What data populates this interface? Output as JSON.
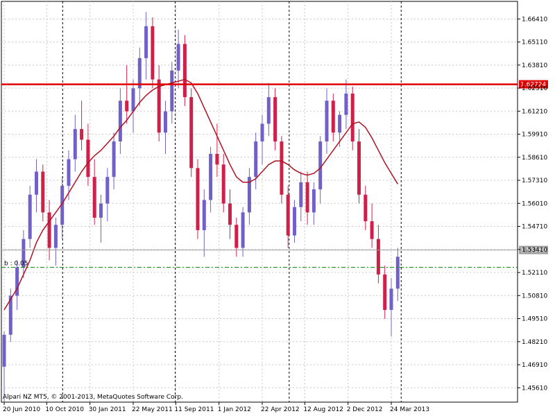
{
  "chart_data": {
    "type": "candlestick",
    "broker_text": "Alpari NZ MT5, © 2001-2013, MetaQuotes Software Corp.",
    "y_ticks": [
      "1.66410",
      "1.65110",
      "1.63810",
      "1.62510",
      "1.61210",
      "1.59910",
      "1.58610",
      "1.57310",
      "1.56010",
      "1.54710",
      "1.53410",
      "1.52110",
      "1.50810",
      "1.49510",
      "1.48210",
      "1.46910",
      "1.45610"
    ],
    "x_ticks": [
      "20 Jun 2010",
      "10 Oct 2010",
      "30 Jan 2011",
      "22 May 2011",
      "11 Sep 2011",
      "1 Jan 2012",
      "22 Apr 2012",
      "12 Aug 2012",
      "2 Dec 2012",
      "24 Mar 2013"
    ],
    "ylim": [
      1.448,
      1.674
    ],
    "resistance_level": {
      "value": 1.62724,
      "label": "1.62724",
      "color": "#e00000"
    },
    "current_price": {
      "value": 1.5338,
      "label": "1.53380",
      "color": "#a0a0a0"
    },
    "level_line": {
      "value": 1.524,
      "label": "b : 0.05",
      "color": "#008000"
    },
    "colors": {
      "bull": "#7060c8",
      "bear": "#d0204a",
      "ma": "#b01020",
      "grid": "#c8c8c8"
    },
    "candles": [
      [
        1.468,
        1.488,
        1.448,
        1.486
      ],
      [
        1.486,
        1.512,
        1.482,
        1.508
      ],
      [
        1.508,
        1.528,
        1.5,
        1.524
      ],
      [
        1.524,
        1.545,
        1.518,
        1.54
      ],
      [
        1.54,
        1.57,
        1.535,
        1.565
      ],
      [
        1.565,
        1.585,
        1.555,
        1.578
      ],
      [
        1.578,
        1.582,
        1.55,
        1.555
      ],
      [
        1.555,
        1.562,
        1.528,
        1.535
      ],
      [
        1.535,
        1.552,
        1.525,
        1.548
      ],
      [
        1.548,
        1.575,
        1.54,
        1.57
      ],
      [
        1.57,
        1.59,
        1.562,
        1.585
      ],
      [
        1.585,
        1.61,
        1.578,
        1.602
      ],
      [
        1.602,
        1.618,
        1.59,
        1.596
      ],
      [
        1.596,
        1.605,
        1.57,
        1.575
      ],
      [
        1.575,
        1.585,
        1.548,
        1.552
      ],
      [
        1.552,
        1.565,
        1.538,
        1.56
      ],
      [
        1.56,
        1.58,
        1.55,
        1.575
      ],
      [
        1.575,
        1.6,
        1.568,
        1.595
      ],
      [
        1.595,
        1.625,
        1.588,
        1.618
      ],
      [
        1.618,
        1.638,
        1.605,
        1.612
      ],
      [
        1.612,
        1.63,
        1.6,
        1.625
      ],
      [
        1.625,
        1.648,
        1.615,
        1.642
      ],
      [
        1.642,
        1.668,
        1.63,
        1.66
      ],
      [
        1.66,
        1.665,
        1.625,
        1.63
      ],
      [
        1.63,
        1.638,
        1.595,
        1.6
      ],
      [
        1.6,
        1.618,
        1.588,
        1.612
      ],
      [
        1.612,
        1.64,
        1.605,
        1.635
      ],
      [
        1.635,
        1.658,
        1.625,
        1.65
      ],
      [
        1.65,
        1.655,
        1.615,
        1.62
      ],
      [
        1.62,
        1.625,
        1.575,
        1.58
      ],
      [
        1.58,
        1.585,
        1.54,
        1.545
      ],
      [
        1.545,
        1.568,
        1.53,
        1.562
      ],
      [
        1.562,
        1.592,
        1.555,
        1.588
      ],
      [
        1.588,
        1.605,
        1.575,
        1.582
      ],
      [
        1.582,
        1.588,
        1.555,
        1.56
      ],
      [
        1.56,
        1.568,
        1.54,
        1.548
      ],
      [
        1.548,
        1.552,
        1.53,
        1.535
      ],
      [
        1.535,
        1.558,
        1.53,
        1.555
      ],
      [
        1.555,
        1.58,
        1.548,
        1.575
      ],
      [
        1.575,
        1.6,
        1.568,
        1.595
      ],
      [
        1.595,
        1.61,
        1.582,
        1.605
      ],
      [
        1.605,
        1.628,
        1.598,
        1.62
      ],
      [
        1.62,
        1.625,
        1.59,
        1.595
      ],
      [
        1.595,
        1.598,
        1.56,
        1.565
      ],
      [
        1.565,
        1.57,
        1.535,
        1.542
      ],
      [
        1.542,
        1.562,
        1.538,
        1.558
      ],
      [
        1.558,
        1.578,
        1.55,
        1.572
      ],
      [
        1.572,
        1.578,
        1.548,
        1.555
      ],
      [
        1.555,
        1.572,
        1.548,
        1.568
      ],
      [
        1.568,
        1.598,
        1.56,
        1.595
      ],
      [
        1.595,
        1.625,
        1.588,
        1.618
      ],
      [
        1.618,
        1.622,
        1.595,
        1.6
      ],
      [
        1.6,
        1.612,
        1.592,
        1.61
      ],
      [
        1.61,
        1.63,
        1.602,
        1.622
      ],
      [
        1.622,
        1.626,
        1.59,
        1.595
      ],
      [
        1.595,
        1.602,
        1.56,
        1.565
      ],
      [
        1.565,
        1.57,
        1.545,
        1.55
      ],
      [
        1.55,
        1.56,
        1.535,
        1.54
      ],
      [
        1.54,
        1.548,
        1.515,
        1.52
      ],
      [
        1.52,
        1.525,
        1.495,
        1.5
      ],
      [
        1.5,
        1.518,
        1.485,
        1.512
      ],
      [
        1.512,
        1.535,
        1.505,
        1.53
      ]
    ],
    "moving_average": [
      1.5,
      1.506,
      1.512,
      1.52,
      1.528,
      1.538,
      1.545,
      1.55,
      1.555,
      1.56,
      1.566,
      1.572,
      1.578,
      1.583,
      1.587,
      1.59,
      1.594,
      1.598,
      1.603,
      1.607,
      1.612,
      1.617,
      1.621,
      1.624,
      1.626,
      1.627,
      1.628,
      1.629,
      1.63,
      1.628,
      1.622,
      1.614,
      1.606,
      1.598,
      1.59,
      1.582,
      1.575,
      1.572,
      1.572,
      1.574,
      1.578,
      1.582,
      1.584,
      1.584,
      1.582,
      1.579,
      1.577,
      1.576,
      1.577,
      1.58,
      1.585,
      1.59,
      1.595,
      1.6,
      1.605,
      1.606,
      1.603,
      1.597,
      1.59,
      1.583,
      1.577,
      1.571
    ]
  }
}
